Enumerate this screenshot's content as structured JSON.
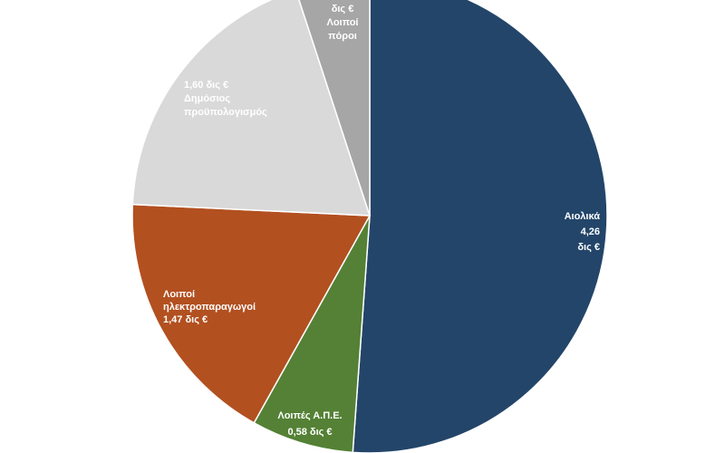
{
  "chart_data": {
    "type": "pie",
    "slices": [
      {
        "name": "Αιολικά",
        "value": 4.26,
        "unit": "δις €",
        "color": "#234569",
        "label_lines": [
          "Αιολικά",
          "4,26",
          "δις €"
        ]
      },
      {
        "name": "Λοιπές Α.Π.Ε.",
        "value": 0.58,
        "unit": "δις €",
        "color": "#548135",
        "label_lines": [
          "Λοιπές Α.Π.Ε.",
          "0,58  δις €"
        ]
      },
      {
        "name": "Λοιποί ηλεκτροπαραγωγοί",
        "value": 1.47,
        "unit": "δις €",
        "color": "#B25020",
        "label_lines": [
          "Λοιποί",
          "ηλεκτροπαραγωγοί",
          "1,47  δις €"
        ]
      },
      {
        "name": "Δημόσιος προϋπολογισμός",
        "value": 1.6,
        "unit": "δις €",
        "color": "#D9D9D9",
        "label_lines": [
          "1,60  δις €",
          "Δημόσιος",
          "προϋπολογισμός"
        ]
      },
      {
        "name": "Λοιποί πόροι",
        "value": 0.42,
        "unit": "δις €",
        "color": "#A6A6A6",
        "label_lines": [
          "δις €",
          "Λοιποί",
          "πόροι"
        ]
      }
    ],
    "start_angle_deg": 0,
    "direction": "clockwise",
    "label_color_dark_slices": "#ffffff",
    "label_color_light_slices": "#ffffff"
  }
}
